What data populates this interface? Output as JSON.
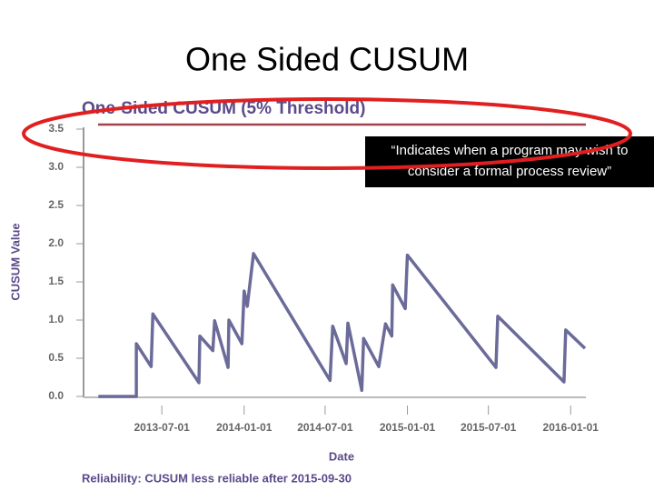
{
  "slide_title": "One Sided CUSUM",
  "chart_data": {
    "type": "line",
    "title": "One-Sided CUSUM (5% Threshold)",
    "y_label": "CUSUM Value",
    "x_label": "Date",
    "x": [
      "2013-02-09",
      "2013-05-05",
      "2013-05-05",
      "2013-06-07",
      "2013-06-11",
      "2013-09-22",
      "2013-09-24",
      "2013-10-23",
      "2013-10-27",
      "2013-11-26",
      "2013-11-28",
      "2013-12-27",
      "2014-01-01",
      "2014-01-08",
      "2014-01-22",
      "2014-07-12",
      "2014-07-18",
      "2014-08-17",
      "2014-08-21",
      "2014-09-21",
      "2014-09-25",
      "2014-10-29",
      "2014-11-13",
      "2014-11-27",
      "2014-11-29",
      "2014-12-27",
      "2015-01-01",
      "2015-07-18",
      "2015-07-22",
      "2015-12-17",
      "2015-12-21",
      "2016-02-02"
    ],
    "values": [
      0,
      0,
      0.69,
      0.39,
      1.08,
      0.18,
      0.79,
      0.6,
      0.99,
      0.38,
      1.0,
      0.69,
      1.38,
      1.18,
      1.87,
      0.21,
      0.92,
      0.43,
      0.96,
      0.08,
      0.76,
      0.39,
      0.95,
      0.79,
      1.46,
      1.15,
      1.85,
      0.38,
      1.05,
      0.19,
      0.87,
      0.63
    ],
    "color": "#6b6b9a",
    "threshold": 3.56,
    "threshold_color": "#a0454f",
    "xlim": [
      "2013-01-07",
      "2016-02-04"
    ],
    "xticks": [
      "2013-07-01",
      "2014-01-01",
      "2014-07-01",
      "2015-01-01",
      "2015-07-01",
      "2016-01-01"
    ],
    "ylim": [
      0,
      3.5
    ],
    "yticks": [
      {
        "value": 0,
        "label": "0.0"
      },
      0.5,
      {
        "value": 1,
        "label": "1.0"
      },
      1.5,
      {
        "value": 2,
        "label": "2.0"
      },
      2.5,
      {
        "value": 3,
        "label": "3.0"
      },
      3.5
    ],
    "note": "Reliability: CUSUM less reliable after 2015-09-30"
  },
  "annotation": [
    "“Indicates when a program may wish to",
    "consider a formal process review”"
  ]
}
